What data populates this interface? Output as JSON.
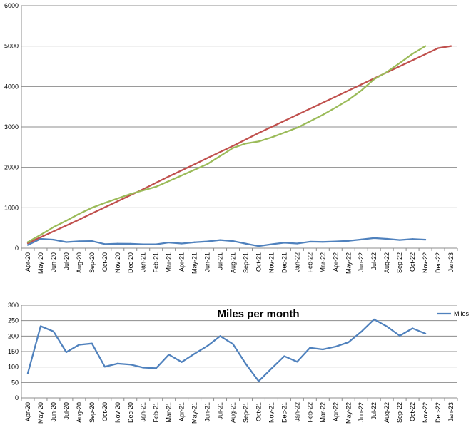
{
  "colors": {
    "plot_bg": "#ffffff",
    "grid": "#8c8c8c",
    "axis": "#8c8c8c",
    "sheet_bg": "#ffffff"
  },
  "chart_data": [
    {
      "type": "line",
      "title": "",
      "xlabel": "",
      "ylabel": "",
      "ylim": [
        0,
        6000
      ],
      "yticks": [
        0,
        1000,
        2000,
        3000,
        4000,
        5000,
        6000
      ],
      "grid": true,
      "legend": "none",
      "categories": [
        "Apr-20",
        "May-20",
        "Jun-20",
        "Jul-20",
        "Aug-20",
        "Sep-20",
        "Oct-20",
        "Nov-20",
        "Dec-20",
        "Jan-21",
        "Feb-21",
        "Mar-21",
        "Apr-21",
        "May-21",
        "Jun-21",
        "Jul-21",
        "Aug-21",
        "Sep-21",
        "Oct-21",
        "Nov-21",
        "Dec-21",
        "Jan-22",
        "Feb-22",
        "Mar-22",
        "Apr-22",
        "May-22",
        "Jun-22",
        "Jul-22",
        "Aug-22",
        "Sep-22",
        "Oct-22",
        "Nov-22",
        "Dec-22",
        "Jan-23"
      ],
      "series": [
        {
          "color": "#4f81bd",
          "values": [
            80,
            230,
            210,
            150,
            170,
            175,
            100,
            110,
            108,
            95,
            95,
            140,
            115,
            145,
            165,
            200,
            175,
            110,
            50,
            95,
            135,
            115,
            160,
            155,
            165,
            180,
            215,
            250,
            230,
            200,
            225,
            210,
            null,
            null
          ]
        },
        {
          "color": "#c0504d",
          "values": [
            125,
            270,
            415,
            560,
            705,
            860,
            1010,
            1160,
            1310,
            1460,
            1620,
            1775,
            1925,
            2075,
            2230,
            2380,
            2530,
            2690,
            2850,
            3000,
            3150,
            3300,
            3450,
            3600,
            3750,
            3900,
            4050,
            4200,
            4350,
            4500,
            4650,
            4800,
            4950,
            5000
          ]
        },
        {
          "color": "#9bbb59",
          "values": [
            150,
            330,
            520,
            680,
            850,
            1000,
            1120,
            1230,
            1340,
            1430,
            1520,
            1660,
            1800,
            1940,
            2080,
            2280,
            2480,
            2590,
            2640,
            2740,
            2860,
            2980,
            3140,
            3300,
            3480,
            3670,
            3900,
            4180,
            4360,
            4580,
            4810,
            5000,
            null,
            null
          ]
        }
      ]
    },
    {
      "type": "line",
      "title": "Miles per month",
      "xlabel": "",
      "ylabel": "",
      "ylim": [
        0,
        300
      ],
      "yticks": [
        0,
        50,
        100,
        150,
        200,
        250,
        300
      ],
      "grid": true,
      "legend": "top-right",
      "categories": [
        "Apr-20",
        "May-20",
        "Jun-20",
        "Jul-20",
        "Aug-20",
        "Sep-20",
        "Oct-20",
        "Nov-20",
        "Dec-20",
        "Jan-21",
        "Feb-21",
        "Mar-21",
        "Apr-21",
        "May-21",
        "Jun-21",
        "Jul-21",
        "Aug-21",
        "Sep-21",
        "Oct-21",
        "Nov-21",
        "Dec-21",
        "Jan-22",
        "Feb-22",
        "Mar-22",
        "Apr-22",
        "May-22",
        "Jun-22",
        "Jul-22",
        "Aug-22",
        "Sep-22",
        "Oct-22",
        "Nov-22",
        "Dec-22",
        "Jan-23"
      ],
      "series": [
        {
          "name": "Miles",
          "color": "#4f81bd",
          "values": [
            80,
            232,
            215,
            148,
            172,
            176,
            101,
            111,
            108,
            98,
            96,
            140,
            116,
            143,
            168,
            200,
            174,
            110,
            54,
            95,
            135,
            117,
            162,
            157,
            166,
            180,
            214,
            254,
            231,
            201,
            225,
            208,
            null,
            null
          ]
        }
      ]
    }
  ]
}
